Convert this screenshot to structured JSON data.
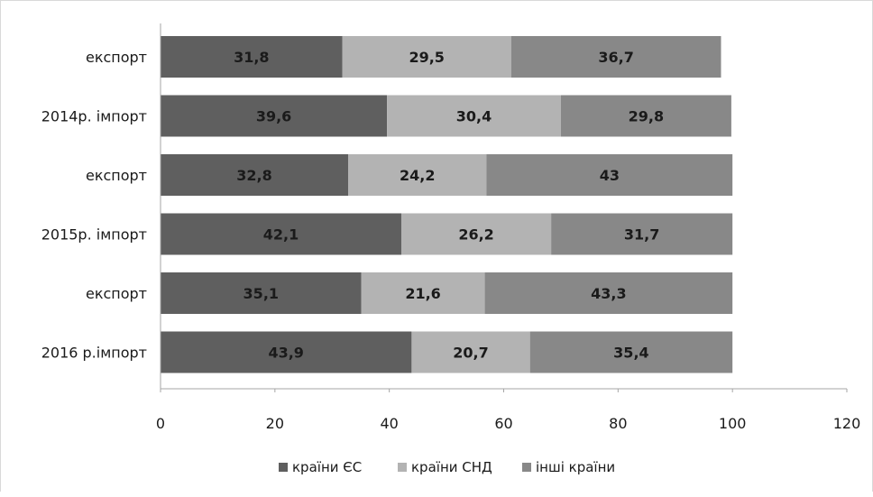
{
  "chart_data": {
    "type": "bar",
    "orientation": "horizontal",
    "stacked": true,
    "categories": [
      "експорт",
      "2014р. імпорт",
      "експорт",
      "2015р. імпорт",
      "експорт",
      "2016 р.імпорт"
    ],
    "series": [
      {
        "name": "країни ЄС",
        "color": "#5f5f5f",
        "values": [
          31.8,
          39.6,
          32.8,
          42.1,
          35.1,
          43.9
        ]
      },
      {
        "name": "країни СНД",
        "color": "#b3b3b3",
        "values": [
          29.5,
          30.4,
          24.2,
          26.2,
          21.6,
          20.7
        ]
      },
      {
        "name": "інші країни",
        "color": "#888888",
        "values": [
          36.7,
          29.8,
          43,
          31.7,
          43.3,
          35.4
        ]
      }
    ],
    "value_labels": [
      [
        "31,8",
        "39,6",
        "32,8",
        "42,1",
        "35,1",
        "43,9"
      ],
      [
        "29,5",
        "30,4",
        "24,2",
        "26,2",
        "21,6",
        "20,7"
      ],
      [
        "36,7",
        "29,8",
        "43",
        "31,7",
        "43,3",
        "35,4"
      ]
    ],
    "xticks": [
      0,
      20,
      40,
      60,
      80,
      100,
      120
    ],
    "xlim": [
      0,
      120
    ],
    "grid": false,
    "legend_position": "bottom",
    "title": "",
    "xlabel": "",
    "ylabel": ""
  }
}
